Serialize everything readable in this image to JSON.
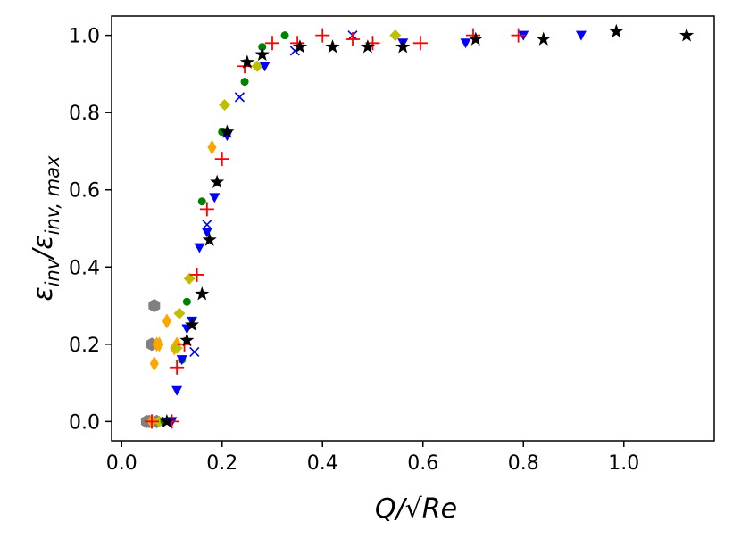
{
  "chart_data": {
    "type": "scatter",
    "xlabel": "Q/√Re",
    "ylabel_main": "ε",
    "ylabel_sub1": "inv",
    "ylabel_slash": "/",
    "ylabel_sub2": "inv, max",
    "xlim": [
      -0.02,
      1.18
    ],
    "ylim": [
      -0.05,
      1.05
    ],
    "x_ticks": [
      0.0,
      0.2,
      0.4,
      0.6,
      0.8,
      1.0
    ],
    "x_tick_labels": [
      "0.0",
      "0.2",
      "0.4",
      "0.6",
      "0.8",
      "1.0"
    ],
    "y_ticks": [
      0.0,
      0.2,
      0.4,
      0.6,
      0.8,
      1.0
    ],
    "y_tick_labels": [
      "0.0",
      "0.2",
      "0.4",
      "0.6",
      "0.8",
      "1.0"
    ],
    "grid": false,
    "legend": "none",
    "series": [
      {
        "marker": "hexagon",
        "color": "#808080",
        "x": [
          0.05,
          0.06,
          0.065,
          0.07,
          0.055
        ],
        "y": [
          0.0,
          0.2,
          0.3,
          0.0,
          0.0
        ]
      },
      {
        "marker": "thin_diamond",
        "color": "#FFA500",
        "x": [
          0.06,
          0.065,
          0.07,
          0.075,
          0.09,
          0.105,
          0.11,
          0.18
        ],
        "y": [
          0.0,
          0.15,
          0.2,
          0.2,
          0.26,
          0.19,
          0.2,
          0.71
        ]
      },
      {
        "marker": "diamond",
        "color": "#BFBF00",
        "x": [
          0.075,
          0.11,
          0.115,
          0.135,
          0.205,
          0.27,
          0.545
        ],
        "y": [
          0.0,
          0.19,
          0.28,
          0.37,
          0.82,
          0.92,
          1.0
        ]
      },
      {
        "marker": "circle",
        "color": "#008000",
        "x": [
          0.085,
          0.12,
          0.13,
          0.16,
          0.2,
          0.245,
          0.28,
          0.325
        ],
        "y": [
          0.0,
          0.16,
          0.31,
          0.57,
          0.75,
          0.88,
          0.97,
          1.0
        ]
      },
      {
        "marker": "triangle_down",
        "color": "#0000FF",
        "x": [
          0.1,
          0.11,
          0.12,
          0.13,
          0.14,
          0.155,
          0.17,
          0.185,
          0.21,
          0.285,
          0.56,
          0.685,
          0.8,
          0.915
        ],
        "y": [
          0.0,
          0.08,
          0.16,
          0.24,
          0.26,
          0.45,
          0.49,
          0.58,
          0.74,
          0.92,
          0.98,
          0.98,
          1.0,
          1.0
        ]
      },
      {
        "marker": "x",
        "color": "#0000FF",
        "x": [
          0.09,
          0.145,
          0.17,
          0.235,
          0.345,
          0.46
        ],
        "y": [
          0.0,
          0.18,
          0.51,
          0.84,
          0.96,
          1.0
        ]
      },
      {
        "marker": "plus",
        "color": "#FF0000",
        "x": [
          0.06,
          0.1,
          0.11,
          0.125,
          0.15,
          0.17,
          0.2,
          0.245,
          0.3,
          0.35,
          0.4,
          0.46,
          0.5,
          0.595,
          0.7,
          0.79
        ],
        "y": [
          0.0,
          0.0,
          0.14,
          0.2,
          0.38,
          0.55,
          0.68,
          0.92,
          0.98,
          0.98,
          1.0,
          0.99,
          0.98,
          0.98,
          1.0,
          1.0
        ]
      },
      {
        "marker": "star",
        "color": "#000000",
        "x": [
          0.09,
          0.13,
          0.14,
          0.16,
          0.175,
          0.19,
          0.21,
          0.25,
          0.28,
          0.355,
          0.42,
          0.49,
          0.56,
          0.705,
          0.84,
          0.985,
          1.125
        ],
        "y": [
          0.0,
          0.21,
          0.25,
          0.33,
          0.47,
          0.62,
          0.75,
          0.93,
          0.95,
          0.97,
          0.97,
          0.97,
          0.97,
          0.99,
          0.99,
          1.01,
          1.0
        ]
      }
    ]
  }
}
